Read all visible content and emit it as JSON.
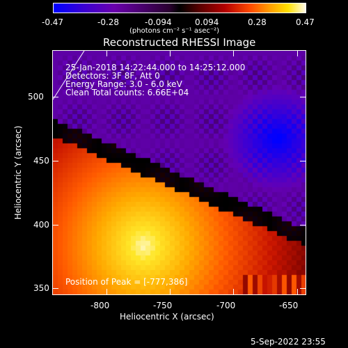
{
  "colorbar": {
    "tick_labels": [
      "-0.47",
      "-0.28",
      "-0.094",
      "0.094",
      "0.28",
      "0.47"
    ],
    "units_label": "(photons cm⁻² s⁻¹ asec⁻²)"
  },
  "plot": {
    "title": "Reconstructed RHESSI Image",
    "info_lines": [
      "25-Jan-2018 14:22:44.000 to 14:25:12.000",
      "Detectors: 3F 8F, Att 0",
      "Energy Range: 3.0 - 6.0 keV",
      "Clean     Total counts: 6.66E+04"
    ],
    "peak_label": "Position of Peak = [-777,386]",
    "xlabel": "Heliocentric X (arcsec)",
    "ylabel": "Heliocentric Y (arcsec)",
    "x_ticks": [
      "-800",
      "-750",
      "-700",
      "-650"
    ],
    "y_ticks": [
      "500",
      "450",
      "400",
      "350"
    ]
  },
  "footer": {
    "timestamp": "5-Sep-2022 23:55"
  },
  "image_data": {
    "x_range": [
      -840,
      -640
    ],
    "y_range": [
      342,
      542
    ],
    "peak": [
      -777,
      386
    ],
    "value_range": [
      -0.47,
      0.47
    ]
  }
}
